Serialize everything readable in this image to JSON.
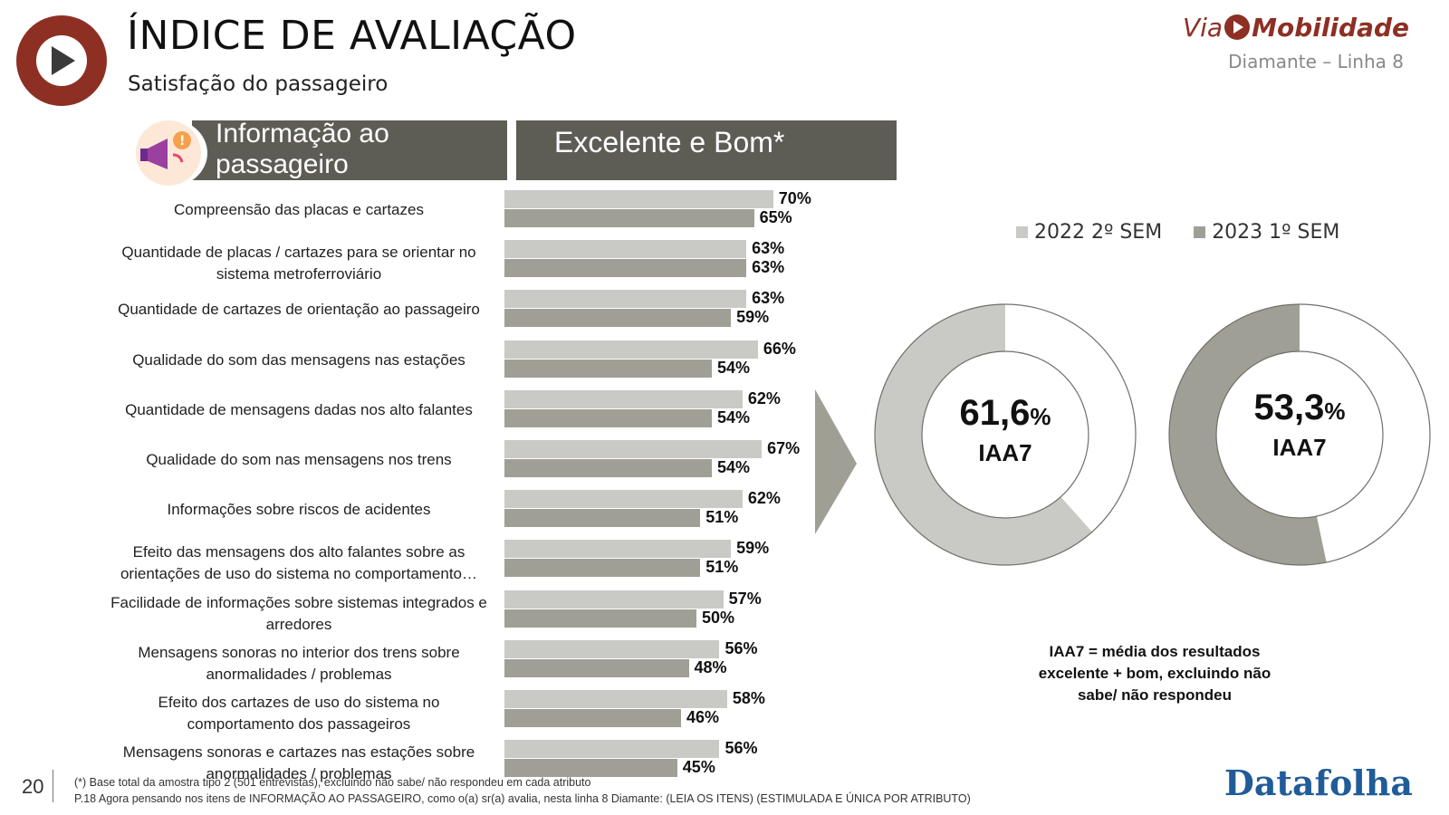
{
  "header": {
    "title": "ÍNDICE DE AVALIAÇÃO",
    "subtitle": "Satisfação do passageiro",
    "brand_via": "Via",
    "brand_mob": "Mobilidade",
    "line_name": "Diamante – Linha 8"
  },
  "section": {
    "category": "Informação ao passageiro",
    "metric": "Excelente e Bom*"
  },
  "legend": [
    {
      "label": "2022 2º SEM",
      "color": "#c9c9c6"
    },
    {
      "label": "2023 1º SEM",
      "color": "#a09f95"
    }
  ],
  "chart_data": [
    {
      "type": "bar",
      "orientation": "horizontal",
      "categories": [
        "Compreensão das placas e cartazes",
        "Quantidade de placas / cartazes para se orientar no sistema metroferroviário",
        "Quantidade de cartazes de orientação ao passageiro",
        "Qualidade do som das mensagens nas estações",
        "Quantidade de mensagens dadas nos alto falantes",
        "Qualidade do som nas mensagens nos trens",
        "Informações sobre riscos de acidentes",
        "Efeito das mensagens dos alto falantes sobre as orientações de uso do sistema no comportamento…",
        "Facilidade de informações sobre sistemas integrados e arredores",
        "Mensagens sonoras no interior dos trens sobre anormalidades / problemas",
        "Efeito dos cartazes de uso do sistema no comportamento dos passageiros",
        "Mensagens sonoras e cartazes nas estações sobre anormalidades / problemas"
      ],
      "series": [
        {
          "name": "2022 2º SEM",
          "values": [
            70,
            63,
            63,
            66,
            62,
            67,
            62,
            59,
            57,
            56,
            58,
            56
          ],
          "color": "#c9c9c6"
        },
        {
          "name": "2023 1º SEM",
          "values": [
            65,
            63,
            59,
            54,
            54,
            54,
            51,
            51,
            50,
            48,
            46,
            45
          ],
          "color": "#a09f95"
        }
      ],
      "value_suffix": "%",
      "xlim": [
        0,
        100
      ],
      "grid": false
    },
    {
      "type": "pie",
      "variant": "donut",
      "series_name": "2022 2º SEM",
      "value": 61.6,
      "display_value": "61,6",
      "unit": "%",
      "label": "IAA7",
      "color": "#c9c9c6"
    },
    {
      "type": "pie",
      "variant": "donut",
      "series_name": "2023 1º SEM",
      "value": 53.3,
      "display_value": "53,3",
      "unit": "%",
      "label": "IAA7",
      "color": "#a09f95"
    }
  ],
  "note": "IAA7 = média dos resultados excelente + bom, excluindo não sabe/ não respondeu",
  "footer": {
    "page_number": "20",
    "footnote1": "(*) Base total da amostra tipo 2 (501 entrevistas), excluindo não sabe/ não respondeu em cada atributo",
    "footnote2": "P.18 Agora pensando nos itens de INFORMAÇÃO AO PASSAGEIRO, como o(a) sr(a) avalia, nesta linha 8 Diamante: (LEIA OS ITENS) (ESTIMULADA E ÚNICA POR ATRIBUTO)",
    "brand": "Datafolha"
  }
}
